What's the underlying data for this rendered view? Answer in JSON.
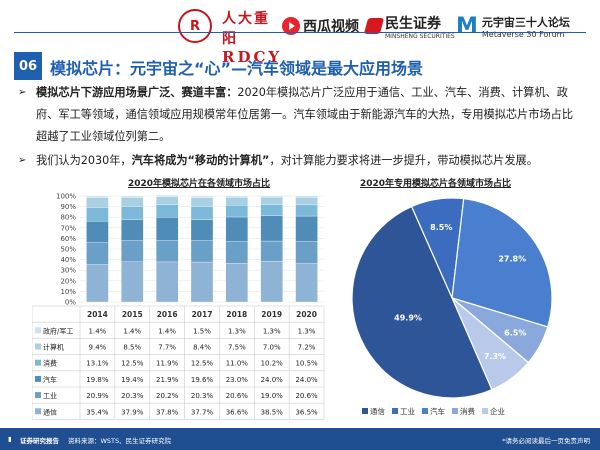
{
  "header": {
    "logos": [
      {
        "name": "rdcy",
        "text_cn": "人大重阳",
        "text_en": "RDCY"
      },
      {
        "name": "xigua",
        "text": "西瓜视频"
      },
      {
        "name": "minsheng",
        "text": "民生证券",
        "sub": "MINSHENG SECURITIES"
      },
      {
        "name": "metaverse",
        "text": "元宇宙三十人论坛",
        "sub": "Metaverse 30 Forum"
      }
    ]
  },
  "section": {
    "number": "06",
    "title": "模拟芯片：元宇宙之“心”—汽车领域是最大应用场景"
  },
  "bullets": [
    {
      "bold": "模拟芯片下游应用场景广泛、赛道丰富：",
      "text": "2020年模拟芯片广泛应用于通信、工业、汽车、消费、计算机、政府、军工等领域，通信领域应用规模常年位居第一。汽车领域由于新能源汽车的大热，专用模拟芯片市场占比超越了工业领域位列第二。"
    },
    {
      "pre": "我们认为2030年，",
      "bold": "汽车将成为“移动的计算机”",
      "text": "，对计算能力要求将进一步提升，带动模拟芯片发展。"
    }
  ],
  "chart_data": [
    {
      "type": "bar",
      "stacked": true,
      "title": "2020年模拟芯片在各领域市场占比",
      "categories": [
        "2014",
        "2015",
        "2016",
        "2017",
        "2018",
        "2019",
        "2020"
      ],
      "ylim": [
        0,
        100
      ],
      "yticks": [
        "0%",
        "10%",
        "20%",
        "30%",
        "40%",
        "50%",
        "60%",
        "70%",
        "80%",
        "90%",
        "100%"
      ],
      "series": [
        {
          "name": "通信",
          "color": "#8fb3d4",
          "values": [
            35.4,
            37.9,
            37.8,
            37.7,
            36.6,
            38.5,
            36.5
          ],
          "labels": [
            "35.4%",
            "37.9%",
            "37.8%",
            "37.7%",
            "36.6%",
            "38.5%",
            "36.5%"
          ]
        },
        {
          "name": "工业",
          "color": "#6aa0c8",
          "values": [
            20.9,
            20.3,
            20.2,
            20.3,
            20.6,
            19.0,
            20.6
          ],
          "labels": [
            "20.9%",
            "20.3%",
            "20.2%",
            "20.3%",
            "20.6%",
            "19.0%",
            "20.6%"
          ]
        },
        {
          "name": "汽车",
          "color": "#4f8db8",
          "values": [
            19.8,
            19.4,
            21.9,
            19.6,
            23.0,
            24.0,
            24.0
          ],
          "labels": [
            "19.8%",
            "19.4%",
            "21.9%",
            "19.6%",
            "23.0%",
            "24.0%",
            "24.0%"
          ]
        },
        {
          "name": "消费",
          "color": "#7cb9d8",
          "values": [
            13.1,
            12.5,
            11.9,
            12.5,
            11.0,
            10.2,
            10.5
          ],
          "labels": [
            "13.1%",
            "12.5%",
            "11.9%",
            "12.5%",
            "11.0%",
            "10.2%",
            "10.5%"
          ]
        },
        {
          "name": "计算机",
          "color": "#a9cfe3",
          "values": [
            9.4,
            8.5,
            7.7,
            8.4,
            7.5,
            7.0,
            7.2
          ],
          "labels": [
            "9.4%",
            "8.5%",
            "7.7%",
            "8.4%",
            "7.5%",
            "7.0%",
            "7.2%"
          ]
        },
        {
          "name": "政府/军工",
          "color": "#cfe2ee",
          "values": [
            1.4,
            1.4,
            1.4,
            1.5,
            1.3,
            1.3,
            1.3
          ],
          "labels": [
            "1.4%",
            "1.4%",
            "1.4%",
            "1.5%",
            "1.3%",
            "1.3%",
            "1.3%"
          ]
        }
      ]
    },
    {
      "type": "pie",
      "title": "2020年专用模拟芯片各领域市场占比",
      "slices": [
        {
          "name": "通信",
          "value": 49.9,
          "label": "49.9%",
          "color": "#2e5597"
        },
        {
          "name": "工业",
          "value": 8.5,
          "label": "8.5%",
          "color": "#3b6cc0"
        },
        {
          "name": "汽车",
          "value": 27.8,
          "label": "27.8%",
          "color": "#4a7fd0"
        },
        {
          "name": "消费",
          "value": 6.5,
          "label": "6.5%",
          "color": "#8aa8dc"
        },
        {
          "name": "企业",
          "value": 7.3,
          "label": "7.3%",
          "color": "#b9c9ea"
        }
      ],
      "legend_position": "bottom"
    }
  ],
  "footer": {
    "left": "证券研究报告",
    "source": "资料来源：WSTS、民生证券研究院",
    "right": "*请务必阅读最后一页免责声明"
  }
}
